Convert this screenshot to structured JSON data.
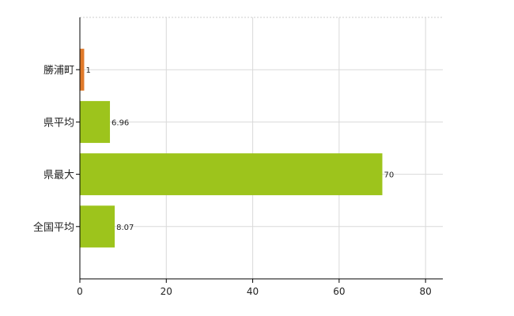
{
  "chart_data": {
    "type": "bar",
    "orientation": "horizontal",
    "categories": [
      "勝浦町",
      "県平均",
      "県最大",
      "全国平均"
    ],
    "values": [
      1,
      6.96,
      70,
      8.07
    ],
    "value_labels": [
      "1",
      "6.96",
      "70",
      "8.07"
    ],
    "bar_colors": [
      "#e07a2a",
      "#9dc41c",
      "#9dc41c",
      "#9dc41c"
    ],
    "xlim": [
      0,
      84
    ],
    "x_ticks": [
      0,
      20,
      40,
      60,
      80
    ],
    "x_tick_labels": [
      "0",
      "20",
      "40",
      "60",
      "80"
    ],
    "grid": true,
    "title": "",
    "xlabel": "",
    "ylabel": ""
  }
}
